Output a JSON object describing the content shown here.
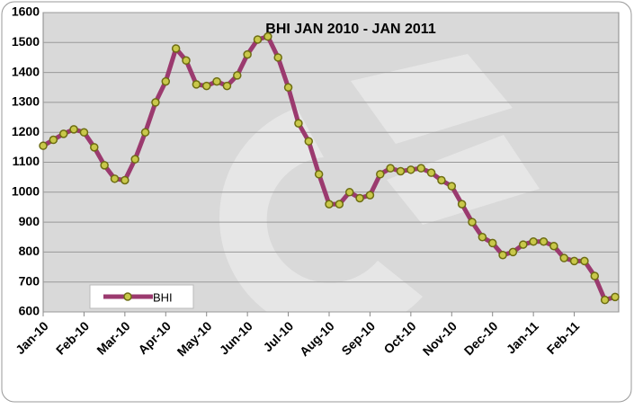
{
  "chart_data": {
    "type": "line",
    "title": "BHI JAN 2010 - JAN 2011",
    "categories": [
      "Jan-10",
      null,
      null,
      null,
      "Feb-10",
      null,
      null,
      null,
      "Mar-10",
      null,
      null,
      null,
      "Apr-10",
      null,
      null,
      null,
      "May-10",
      null,
      null,
      null,
      "Jun-10",
      null,
      null,
      null,
      "Jul-10",
      null,
      null,
      null,
      "Aug-10",
      null,
      null,
      null,
      "Sep-10",
      null,
      null,
      null,
      "Oct-10",
      null,
      null,
      null,
      "Nov-10",
      null,
      null,
      null,
      "Dec-10",
      null,
      null,
      null,
      "Jan-11",
      null,
      null,
      null,
      "Feb-11",
      null,
      null,
      null,
      null
    ],
    "series": [
      {
        "name": "BHI",
        "color": "#9b3a6f",
        "marker_color": "#c9c84a",
        "values": [
          1155,
          1175,
          1195,
          1210,
          1200,
          1150,
          1090,
          1045,
          1040,
          1110,
          1200,
          1300,
          1370,
          1480,
          1440,
          1360,
          1355,
          1370,
          1355,
          1390,
          1460,
          1510,
          1520,
          1450,
          1350,
          1230,
          1170,
          1060,
          960,
          960,
          1000,
          980,
          990,
          1060,
          1080,
          1070,
          1075,
          1080,
          1065,
          1040,
          1020,
          960,
          900,
          850,
          830,
          790,
          800,
          825,
          835,
          835,
          820,
          780,
          770,
          770,
          720,
          640,
          650
        ]
      }
    ],
    "ylim": [
      600,
      1600
    ],
    "yticks": [
      600,
      700,
      800,
      900,
      1000,
      1100,
      1200,
      1300,
      1400,
      1500,
      1600
    ],
    "grid": true,
    "legend": "lower left"
  }
}
